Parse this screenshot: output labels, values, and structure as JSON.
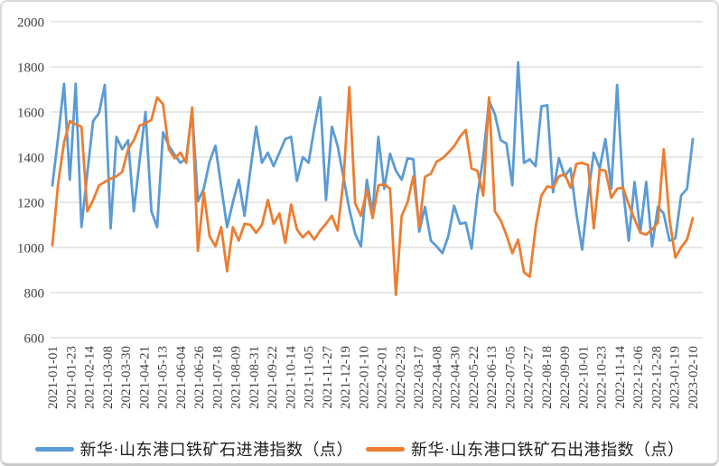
{
  "accent_colors": {
    "series_import": "#5B9BD5",
    "series_export": "#ED7D31",
    "gridline": "#D9D9D9",
    "tick_text": "#404040"
  },
  "legend": {
    "import_label": "新华·山东港口铁矿石进港指数（点）",
    "export_label": "新华·山东港口铁矿石出港指数（点）"
  },
  "chart_data": {
    "type": "line",
    "title": "",
    "xlabel": "",
    "ylabel": "",
    "ylim": [
      600,
      2000
    ],
    "ytick_step": 200,
    "yticks": [
      600,
      800,
      1000,
      1200,
      1400,
      1600,
      1800,
      2000
    ],
    "grid": "horizontal",
    "legend_position": "bottom",
    "x_start_date": "2021-01-01",
    "x_end_date": "2023-02-10",
    "x_interval_days": 7,
    "x_tick_labels": [
      "2021-01-01",
      "2021-01-23",
      "2021-02-14",
      "2021-03-08",
      "2021-03-30",
      "2021-04-21",
      "2021-05-13",
      "2021-06-04",
      "2021-06-26",
      "2021-07-18",
      "2021-08-09",
      "2021-08-31",
      "2021-09-22",
      "2021-10-14",
      "2021-11-05",
      "2021-11-27",
      "2021-12-19",
      "2022-01-10",
      "2022-02-01",
      "2022-02-23",
      "2022-03-17",
      "2022-04-08",
      "2022-04-30",
      "2022-05-22",
      "2022-06-13",
      "2022-07-05",
      "2022-07-27",
      "2022-08-18",
      "2022-09-09",
      "2022-10-01",
      "2022-10-23",
      "2022-11-14",
      "2022-12-06",
      "2022-12-28",
      "2023-01-19",
      "2023-02-10"
    ],
    "series": [
      {
        "name": "新华·山东港口铁矿石进港指数（点）",
        "color": "#5B9BD5",
        "values": [
          1275,
          1490,
          1725,
          1300,
          1725,
          1090,
          1330,
          1560,
          1595,
          1720,
          1085,
          1490,
          1435,
          1475,
          1160,
          1390,
          1600,
          1160,
          1090,
          1510,
          1450,
          1410,
          1375,
          1395,
          1610,
          1205,
          1260,
          1380,
          1450,
          1270,
          1090,
          1200,
          1300,
          1140,
          1340,
          1535,
          1375,
          1420,
          1360,
          1420,
          1480,
          1490,
          1295,
          1400,
          1375,
          1530,
          1665,
          1210,
          1535,
          1450,
          1310,
          1170,
          1060,
          1005,
          1300,
          1150,
          1490,
          1260,
          1415,
          1340,
          1300,
          1395,
          1390,
          1070,
          1180,
          1030,
          1005,
          975,
          1050,
          1185,
          1105,
          1110,
          995,
          1230,
          1400,
          1650,
          1590,
          1475,
          1460,
          1275,
          1820,
          1375,
          1390,
          1360,
          1625,
          1630,
          1245,
          1395,
          1315,
          1350,
          1150,
          990,
          1230,
          1420,
          1350,
          1480,
          1260,
          1720,
          1260,
          1030,
          1290,
          1070,
          1290,
          1005,
          1180,
          1150,
          1030,
          1040,
          1230,
          1260,
          1480
        ]
      },
      {
        "name": "新华·山东港口铁矿石出港指数（点）",
        "color": "#ED7D31",
        "values": [
          1010,
          1285,
          1465,
          1560,
          1545,
          1535,
          1160,
          1210,
          1275,
          1290,
          1305,
          1315,
          1335,
          1435,
          1475,
          1540,
          1550,
          1565,
          1665,
          1635,
          1435,
          1395,
          1420,
          1375,
          1620,
          985,
          1245,
          1050,
          1005,
          1090,
          895,
          1090,
          1030,
          1105,
          1100,
          1065,
          1100,
          1210,
          1105,
          1150,
          1020,
          1190,
          1080,
          1045,
          1070,
          1035,
          1075,
          1105,
          1140,
          1075,
          1300,
          1710,
          1195,
          1140,
          1255,
          1130,
          1275,
          1280,
          1260,
          790,
          1140,
          1200,
          1315,
          1090,
          1313,
          1327,
          1380,
          1395,
          1420,
          1448,
          1490,
          1520,
          1350,
          1340,
          1230,
          1665,
          1160,
          1120,
          1055,
          975,
          1035,
          890,
          870,
          1090,
          1230,
          1270,
          1265,
          1315,
          1325,
          1265,
          1370,
          1375,
          1365,
          1085,
          1345,
          1340,
          1220,
          1260,
          1265,
          1190,
          1125,
          1065,
          1057,
          1080,
          1110,
          1435,
          1125,
          955,
          1000,
          1035,
          1130
        ]
      }
    ]
  }
}
